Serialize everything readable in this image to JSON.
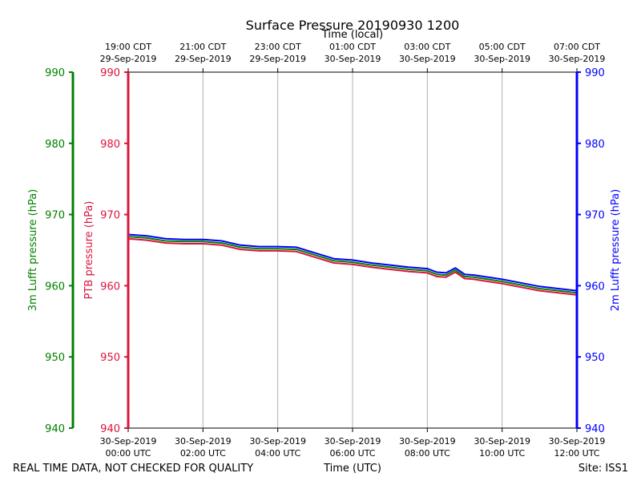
{
  "chart_data": {
    "type": "line",
    "title": "Surface Pressure 20190930 1200",
    "top_axis_label": "Time (local)",
    "xlabel": "Time (UTC)",
    "left_outer_ylabel": "3m Lufft pressure (hPa)",
    "left_inner_ylabel": "PTB pressure (hPa)",
    "right_ylabel": "2m Lufft pressure (hPa)",
    "ylim": [
      940,
      990
    ],
    "yticks": [
      "940",
      "950",
      "960",
      "970",
      "980",
      "990"
    ],
    "xlim_hours": [
      0,
      12
    ],
    "x_ticks_bottom": [
      {
        "line1": "30-Sep-2019",
        "line2": "00:00 UTC"
      },
      {
        "line1": "30-Sep-2019",
        "line2": "02:00 UTC"
      },
      {
        "line1": "30-Sep-2019",
        "line2": "04:00 UTC"
      },
      {
        "line1": "30-Sep-2019",
        "line2": "06:00 UTC"
      },
      {
        "line1": "30-Sep-2019",
        "line2": "08:00 UTC"
      },
      {
        "line1": "30-Sep-2019",
        "line2": "10:00 UTC"
      },
      {
        "line1": "30-Sep-2019",
        "line2": "12:00 UTC"
      }
    ],
    "x_ticks_top": [
      {
        "line1": "19:00 CDT",
        "line2": "29-Sep-2019"
      },
      {
        "line1": "21:00 CDT",
        "line2": "29-Sep-2019"
      },
      {
        "line1": "23:00 CDT",
        "line2": "29-Sep-2019"
      },
      {
        "line1": "01:00 CDT",
        "line2": "30-Sep-2019"
      },
      {
        "line1": "03:00 CDT",
        "line2": "30-Sep-2019"
      },
      {
        "line1": "05:00 CDT",
        "line2": "30-Sep-2019"
      },
      {
        "line1": "07:00 CDT",
        "line2": "30-Sep-2019"
      }
    ],
    "grid": true,
    "series": [
      {
        "name": "PTB pressure",
        "color": "#dc143c",
        "x_hours": [
          0,
          0.5,
          1,
          1.5,
          2,
          2.5,
          3,
          3.5,
          4,
          4.5,
          5,
          5.5,
          6,
          6.5,
          7,
          7.5,
          8,
          8.25,
          8.5,
          8.75,
          9,
          9.25,
          9.5,
          10,
          10.5,
          11,
          11.5,
          12
        ],
        "values": [
          966.6,
          966.4,
          966.0,
          965.9,
          965.9,
          965.7,
          965.1,
          964.9,
          964.9,
          964.8,
          964.0,
          963.2,
          963.0,
          962.6,
          962.3,
          962.0,
          961.8,
          961.3,
          961.2,
          961.9,
          961.0,
          960.9,
          960.7,
          960.3,
          959.8,
          959.3,
          959.0,
          958.7
        ]
      },
      {
        "name": "3m Lufft pressure",
        "color": "#008000",
        "x_hours": [
          0,
          0.5,
          1,
          1.5,
          2,
          2.5,
          3,
          3.5,
          4,
          4.5,
          5,
          5.5,
          6,
          6.5,
          7,
          7.5,
          8,
          8.25,
          8.5,
          8.75,
          9,
          9.25,
          9.5,
          10,
          10.5,
          11,
          11.5,
          12
        ],
        "values": [
          966.9,
          966.7,
          966.3,
          966.2,
          966.2,
          966.0,
          965.4,
          965.2,
          965.2,
          965.1,
          964.3,
          963.5,
          963.3,
          962.9,
          962.6,
          962.3,
          962.1,
          961.6,
          961.5,
          962.2,
          961.3,
          961.2,
          961.0,
          960.6,
          960.1,
          959.6,
          959.3,
          959.0
        ]
      },
      {
        "name": "2m Lufft pressure",
        "color": "#0000ff",
        "x_hours": [
          0,
          0.5,
          1,
          1.5,
          2,
          2.5,
          3,
          3.5,
          4,
          4.5,
          5,
          5.5,
          6,
          6.5,
          7,
          7.5,
          8,
          8.25,
          8.5,
          8.75,
          9,
          9.25,
          9.5,
          10,
          10.5,
          11,
          11.5,
          12
        ],
        "values": [
          967.2,
          967.0,
          966.6,
          966.5,
          966.5,
          966.3,
          965.7,
          965.5,
          965.5,
          965.4,
          964.6,
          963.8,
          963.6,
          963.2,
          962.9,
          962.6,
          962.4,
          961.9,
          961.8,
          962.5,
          961.6,
          961.5,
          961.3,
          960.9,
          960.4,
          959.9,
          959.6,
          959.3
        ]
      }
    ],
    "colors": {
      "left_outer_axis": "#008000",
      "left_inner_axis": "#dc143c",
      "right_axis": "#0000ff",
      "grid": "#b0b0b0"
    }
  },
  "footer": {
    "disclaimer": "REAL TIME DATA, NOT CHECKED FOR QUALITY",
    "site": "Site: ISS1"
  }
}
